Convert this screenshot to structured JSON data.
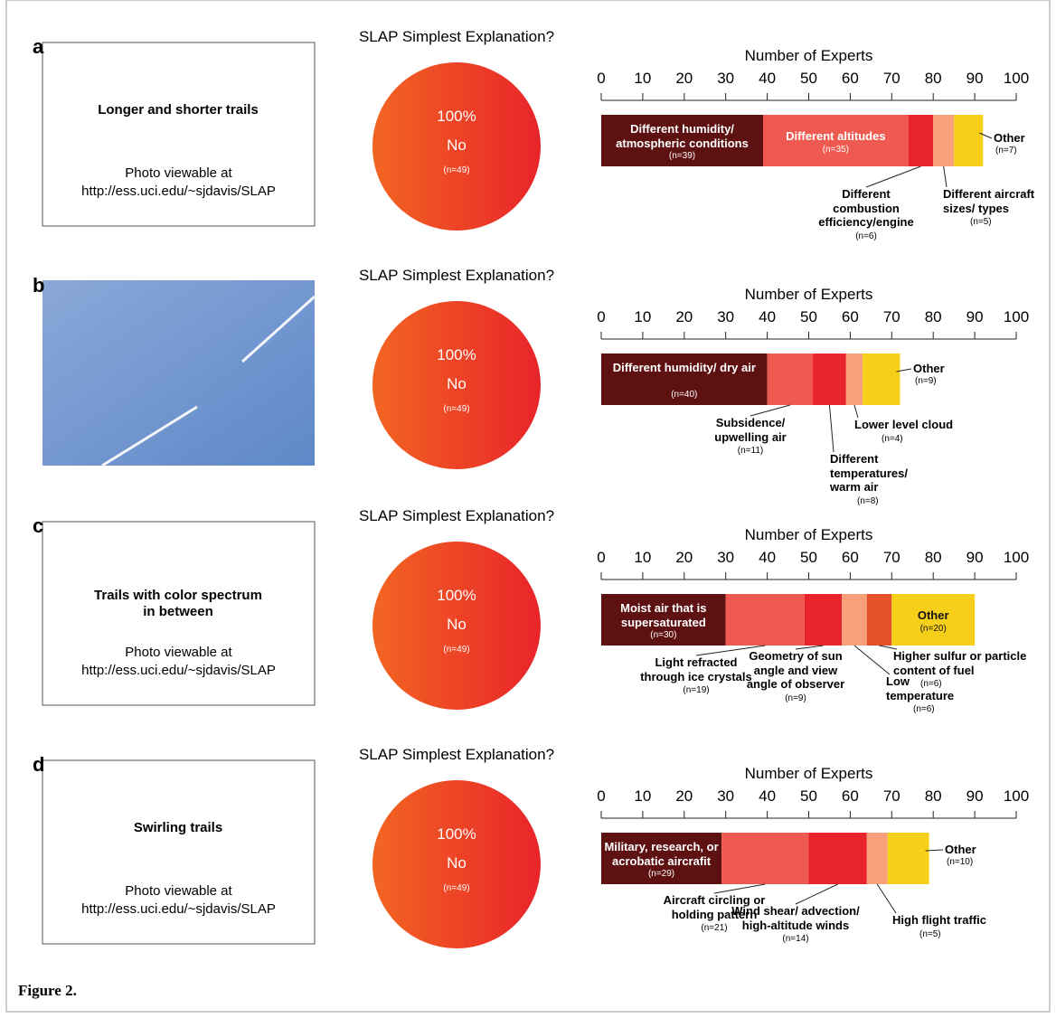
{
  "panels": [
    {
      "letter": "a",
      "caption": "Longer and shorter trails",
      "note": "Photo viewable at",
      "url": "http://ess.uci.edu/~sjdavis/SLAP"
    },
    {
      "letter": "b"
    },
    {
      "letter": "c",
      "caption": "Trails with color spectrum in between",
      "note": "Photo viewable at",
      "url": "http://ess.uci.edu/~sjdavis/SLAP"
    },
    {
      "letter": "d",
      "caption": "Swirling trails",
      "note": "Photo viewable at",
      "url": "http://ess.uci.edu/~sjdavis/SLAP"
    }
  ],
  "chart_data": [
    {
      "type": "pie",
      "title": "SLAP Simplest Explanation?",
      "categories": [
        "No"
      ],
      "values": [
        100
      ],
      "value_labels": [
        "100%"
      ],
      "n_label": "(n=49)",
      "colors": [
        "#f26522",
        "#e8242a"
      ]
    },
    {
      "type": "bar",
      "title": "Number of Experts",
      "xlim": [
        0,
        100
      ],
      "xticks": [
        0,
        10,
        20,
        30,
        40,
        50,
        60,
        70,
        80,
        90,
        100
      ],
      "series": [
        {
          "name": "Different humidity/ atmospheric conditions",
          "color": "#5e1111",
          "values": [
            39
          ],
          "value_labels": [
            "(n=39)"
          ]
        },
        {
          "name": "Different altitudes",
          "color": "#ef5a50",
          "values": [
            35
          ],
          "value_labels": [
            "(n=35)"
          ]
        },
        {
          "name": "Different combustion efficiency/engine",
          "color": "#e8242a",
          "values": [
            6
          ],
          "value_labels": [
            "(n=6)"
          ]
        },
        {
          "name": "Different aircraft sizes/ types",
          "color": "#f7a07a",
          "values": [
            5
          ],
          "value_labels": [
            "(n=5)"
          ]
        },
        {
          "name": "Other",
          "color": "#f6cf1a",
          "values": [
            7
          ],
          "value_labels": [
            "(n=7)"
          ]
        }
      ]
    },
    {
      "type": "pie",
      "title": "SLAP Simplest Explanation?",
      "categories": [
        "No"
      ],
      "values": [
        100
      ],
      "value_labels": [
        "100%"
      ],
      "n_label": "(n=49)",
      "colors": [
        "#f26522",
        "#e8242a"
      ]
    },
    {
      "type": "bar",
      "title": "Number of Experts",
      "xlim": [
        0,
        100
      ],
      "xticks": [
        0,
        10,
        20,
        30,
        40,
        50,
        60,
        70,
        80,
        90,
        100
      ],
      "series": [
        {
          "name": "Different humidity/ dry air",
          "color": "#5e1111",
          "values": [
            40
          ],
          "value_labels": [
            "(n=40)"
          ]
        },
        {
          "name": "Subsidence/ upwelling air",
          "color": "#ef5a50",
          "values": [
            11
          ],
          "value_labels": [
            "(n=11)"
          ]
        },
        {
          "name": "Different temperatures/ warm air",
          "color": "#e8242a",
          "values": [
            8
          ],
          "value_labels": [
            "(n=8)"
          ]
        },
        {
          "name": "Lower level cloud",
          "color": "#f7a07a",
          "values": [
            4
          ],
          "value_labels": [
            "(n=4)"
          ]
        },
        {
          "name": "Other",
          "color": "#f6cf1a",
          "values": [
            9
          ],
          "value_labels": [
            "(n=9)"
          ]
        }
      ]
    },
    {
      "type": "pie",
      "title": "SLAP Simplest Explanation?",
      "categories": [
        "No"
      ],
      "values": [
        100
      ],
      "value_labels": [
        "100%"
      ],
      "n_label": "(n=49)",
      "colors": [
        "#f26522",
        "#e8242a"
      ]
    },
    {
      "type": "bar",
      "title": "Number of Experts",
      "xlim": [
        0,
        100
      ],
      "xticks": [
        0,
        10,
        20,
        30,
        40,
        50,
        60,
        70,
        80,
        90,
        100
      ],
      "series": [
        {
          "name": "Moist air that is supersaturated",
          "color": "#5e1111",
          "values": [
            30
          ],
          "value_labels": [
            "(n=30)"
          ]
        },
        {
          "name": "Light refracted through ice crystals",
          "color": "#ef5a50",
          "values": [
            19
          ],
          "value_labels": [
            "(n=19)"
          ]
        },
        {
          "name": "Geometry of sun angle and view angle of observer",
          "color": "#e8242a",
          "values": [
            9
          ],
          "value_labels": [
            "(n=9)"
          ]
        },
        {
          "name": "Low temperature",
          "color": "#f7a07a",
          "values": [
            6
          ],
          "value_labels": [
            "(n=6)"
          ]
        },
        {
          "name": "Higher sulfur or particle content of fuel",
          "color": "#e4502a",
          "values": [
            6
          ],
          "value_labels": [
            "(n=6)"
          ]
        },
        {
          "name": "Other",
          "color": "#f6cf1a",
          "values": [
            20
          ],
          "value_labels": [
            "(n=20)"
          ]
        }
      ]
    },
    {
      "type": "pie",
      "title": "SLAP Simplest Explanation?",
      "categories": [
        "No"
      ],
      "values": [
        100
      ],
      "value_labels": [
        "100%"
      ],
      "n_label": "(n=49)",
      "colors": [
        "#f26522",
        "#e8242a"
      ]
    },
    {
      "type": "bar",
      "title": "Number of Experts",
      "xlim": [
        0,
        100
      ],
      "xticks": [
        0,
        10,
        20,
        30,
        40,
        50,
        60,
        70,
        80,
        90,
        100
      ],
      "series": [
        {
          "name": "Military, research, or acrobatic aircrafit",
          "color": "#5e1111",
          "values": [
            29
          ],
          "value_labels": [
            "(n=29)"
          ]
        },
        {
          "name": "Aircraft circling or holding pattern",
          "color": "#ef5a50",
          "values": [
            21
          ],
          "value_labels": [
            "(n=21)"
          ]
        },
        {
          "name": "Wind shear/ advection/ high-altitude winds",
          "color": "#e8242a",
          "values": [
            14
          ],
          "value_labels": [
            "(n=14)"
          ]
        },
        {
          "name": "High flight traffic",
          "color": "#f7a07a",
          "values": [
            5
          ],
          "value_labels": [
            "(n=5)"
          ]
        },
        {
          "name": "Other",
          "color": "#f6cf1a",
          "values": [
            10
          ],
          "value_labels": [
            "(n=10)"
          ]
        }
      ]
    }
  ],
  "footer": "Figure 2."
}
